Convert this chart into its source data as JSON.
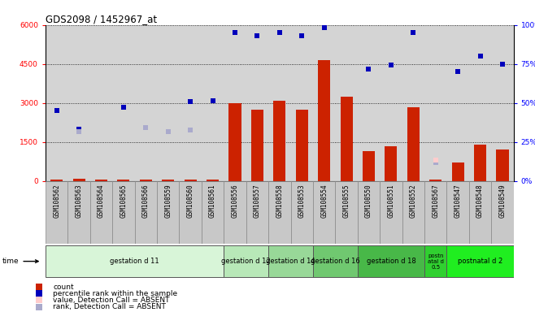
{
  "title": "GDS2098 / 1452967_at",
  "samples": [
    "GSM108562",
    "GSM108563",
    "GSM108564",
    "GSM108565",
    "GSM108566",
    "GSM108559",
    "GSM108560",
    "GSM108561",
    "GSM108556",
    "GSM108557",
    "GSM108558",
    "GSM108553",
    "GSM108554",
    "GSM108555",
    "GSM108550",
    "GSM108551",
    "GSM108552",
    "GSM108567",
    "GSM108547",
    "GSM108548",
    "GSM108549"
  ],
  "bar_values": [
    60,
    70,
    60,
    60,
    60,
    60,
    60,
    60,
    3000,
    2750,
    3100,
    2750,
    4650,
    3250,
    1150,
    1350,
    2850,
    60,
    700,
    1400,
    1200
  ],
  "blue_values": [
    2700,
    2000,
    null,
    2850,
    null,
    null,
    3050,
    3100,
    5700,
    5600,
    5700,
    5600,
    5900,
    null,
    4300,
    4450,
    5700,
    null,
    4200,
    4800,
    4500
  ],
  "pink_values": [
    null,
    null,
    null,
    null,
    null,
    null,
    null,
    null,
    null,
    null,
    null,
    null,
    null,
    null,
    null,
    null,
    null,
    800,
    null,
    null,
    null
  ],
  "lavender_values": [
    null,
    1900,
    null,
    null,
    2050,
    1900,
    1950,
    null,
    null,
    null,
    null,
    null,
    null,
    null,
    null,
    null,
    null,
    700,
    null,
    null,
    null
  ],
  "groups": [
    {
      "label": "gestation d 11",
      "start": 0,
      "end": 8
    },
    {
      "label": "gestation d 12",
      "start": 8,
      "end": 10
    },
    {
      "label": "gestation d 14",
      "start": 10,
      "end": 12
    },
    {
      "label": "gestation d 16",
      "start": 12,
      "end": 14
    },
    {
      "label": "gestation d 18",
      "start": 14,
      "end": 17
    },
    {
      "label": "postn\natal d\n0.5",
      "start": 17,
      "end": 18
    },
    {
      "label": "postnatal d 2",
      "start": 18,
      "end": 21
    }
  ],
  "group_colors": [
    "#d8f5d8",
    "#b8e8b8",
    "#98d898",
    "#70c870",
    "#48b848",
    "#30d030",
    "#20ee20"
  ],
  "ylim_left": [
    0,
    6000
  ],
  "ylim_right": [
    0,
    100
  ],
  "yticks_left": [
    0,
    1500,
    3000,
    4500,
    6000
  ],
  "yticks_right": [
    0,
    25,
    50,
    75,
    100
  ],
  "bar_color": "#cc2200",
  "blue_color": "#0000bb",
  "pink_color": "#ffcccc",
  "lavender_color": "#aaaacc",
  "bg_color": "#d4d4d4",
  "xticklabels_bg": "#c8c8c8"
}
